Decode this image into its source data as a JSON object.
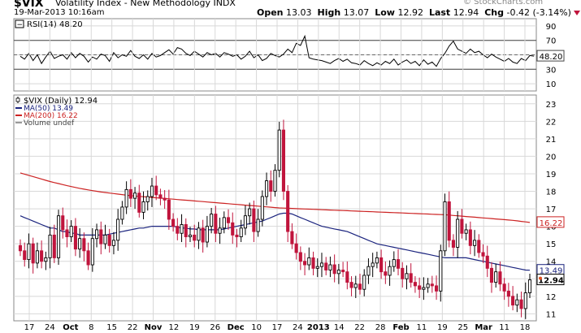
{
  "header": {
    "symbol": "$VIX",
    "name": "Volatility Index - New Methodology INDX",
    "date": "19-Mar-2013 10:16am",
    "credit": "© StockCharts.com",
    "quote": {
      "open_label": "Open",
      "open": "13.03",
      "high_label": "High",
      "high": "13.07",
      "low_label": "Low",
      "low": "12.92",
      "last_label": "Last",
      "last": "12.94",
      "chg_label": "Chg",
      "chg": "-0.42 (-3.14%)"
    }
  },
  "colors": {
    "up": "#000000",
    "down": "#c0143c",
    "ma50": "#1a237e",
    "ma200": "#cc2222",
    "rsi": "#000000",
    "grid": "#d8d8d8"
  },
  "chart_data": [
    {
      "type": "line",
      "title": "RSI(14) 48.20",
      "yticks": [
        10,
        30,
        50,
        70,
        90
      ],
      "ylim": [
        0,
        100
      ],
      "reference_lines": [
        30,
        70
      ],
      "current_label": "48.20",
      "series": [
        {
          "name": "RSI(14)",
          "values": [
            48,
            44,
            52,
            42,
            50,
            38,
            47,
            55,
            45,
            48,
            50,
            44,
            53,
            46,
            52,
            48,
            40,
            47,
            44,
            51,
            49,
            41,
            53,
            46,
            50,
            48,
            56,
            48,
            45,
            50,
            44,
            52,
            47,
            49,
            53,
            57,
            51,
            60,
            58,
            52,
            49,
            55,
            51,
            47,
            53,
            50,
            52,
            47,
            53,
            51,
            48,
            50,
            44,
            48,
            55,
            46,
            50,
            42,
            45,
            52,
            49,
            47,
            51,
            58,
            53,
            66,
            63,
            76,
            46,
            44,
            43,
            42,
            40,
            38,
            42,
            45,
            41,
            44,
            39,
            38,
            36,
            42,
            38,
            35,
            39,
            36,
            41,
            38,
            44,
            36,
            40,
            43,
            38,
            41,
            35,
            43,
            37,
            40,
            34,
            45,
            52,
            62,
            69,
            58,
            55,
            52,
            58,
            53,
            55,
            50,
            46,
            51,
            47,
            44,
            41,
            45,
            40,
            38,
            45,
            42,
            49,
            48.2
          ]
        }
      ]
    },
    {
      "type": "candlestick",
      "title": "$VIX (Daily) 12.94",
      "ylim": [
        10.6,
        23.5
      ],
      "yticks": [
        11,
        12,
        13,
        14,
        15,
        16,
        17,
        18,
        19,
        20,
        21,
        22,
        23
      ],
      "xticks": [
        "17",
        "24",
        "Oct",
        "8",
        "15",
        "22",
        "Nov",
        "12",
        "19",
        "26",
        "Dec",
        "10",
        "17",
        "24",
        "2013",
        "14",
        "22",
        "28",
        "Feb",
        "11",
        "19",
        "25",
        "Mar",
        "11",
        "18"
      ],
      "legend": [
        {
          "name": "$VIX (Daily) 12.94",
          "marker": "candle"
        },
        {
          "name": "MA(50) 13.49",
          "color": "#1a237e"
        },
        {
          "name": "MA(200) 16.22",
          "color": "#cc2222"
        },
        {
          "name": "Volume undef",
          "color": "#999999"
        }
      ],
      "price_labels": [
        {
          "name": "MA(200)",
          "value": "16.22"
        },
        {
          "name": "MA(50)",
          "value": "13.49"
        },
        {
          "name": "Last",
          "value": "12.94"
        }
      ],
      "closes": [
        14.6,
        14.1,
        15.0,
        13.9,
        14.6,
        14.0,
        14.2,
        15.5,
        14.2,
        16.6,
        15.8,
        15.4,
        16.0,
        14.7,
        15.3,
        14.6,
        13.8,
        15.3,
        15.8,
        15.0,
        15.5,
        14.9,
        15.2,
        16.4,
        17.1,
        18.1,
        17.6,
        17.9,
        16.8,
        17.4,
        17.7,
        18.3,
        17.8,
        17.6,
        17.5,
        16.4,
        16.0,
        15.6,
        16.1,
        15.4,
        15.5,
        15.2,
        15.9,
        15.1,
        16.0,
        16.7,
        15.6,
        15.9,
        16.5,
        16.2,
        15.5,
        15.4,
        15.9,
        16.6,
        17.0,
        15.7,
        16.4,
        17.7,
        18.6,
        18.0,
        19.2,
        21.5,
        18.0,
        15.7,
        15.0,
        14.5,
        14.0,
        13.8,
        14.2,
        13.6,
        13.7,
        13.9,
        13.5,
        13.8,
        13.3,
        13.5,
        13.4,
        12.8,
        12.5,
        12.7,
        12.4,
        13.2,
        13.7,
        13.9,
        14.2,
        13.4,
        13.2,
        13.7,
        14.1,
        13.6,
        13.0,
        13.3,
        12.8,
        12.6,
        12.4,
        12.5,
        12.7,
        12.6,
        12.3,
        14.6,
        17.4,
        15.2,
        14.8,
        16.4,
        15.6,
        15.8,
        14.9,
        15.2,
        14.5,
        14.3,
        13.6,
        12.8,
        13.4,
        12.7,
        12.3,
        12.0,
        11.5,
        11.8,
        11.3,
        12.2,
        12.94
      ],
      "ma50": [
        16.6,
        16.5,
        16.4,
        16.3,
        16.2,
        16.1,
        16.0,
        15.9,
        15.9,
        15.8,
        15.7,
        15.7,
        15.6,
        15.6,
        15.5,
        15.5,
        15.5,
        15.5,
        15.5,
        15.5,
        15.5,
        15.55,
        15.6,
        15.65,
        15.7,
        15.75,
        15.8,
        15.85,
        15.9,
        15.9,
        15.95,
        16.0,
        16.0,
        16.0,
        16.0,
        16.0,
        16.0,
        15.95,
        15.9,
        15.9,
        15.85,
        15.85,
        15.8,
        15.8,
        15.8,
        15.8,
        15.8,
        15.8,
        15.85,
        15.9,
        15.95,
        16.0,
        16.05,
        16.1,
        16.15,
        16.2,
        16.25,
        16.3,
        16.4,
        16.5,
        16.6,
        16.7,
        16.75,
        16.75,
        16.7,
        16.6,
        16.5,
        16.4,
        16.3,
        16.2,
        16.1,
        16.0,
        15.95,
        15.9,
        15.85,
        15.8,
        15.75,
        15.7,
        15.6,
        15.5,
        15.4,
        15.3,
        15.2,
        15.1,
        15.0,
        14.95,
        14.9,
        14.85,
        14.8,
        14.75,
        14.7,
        14.65,
        14.6,
        14.55,
        14.5,
        14.45,
        14.4,
        14.35,
        14.3,
        14.25,
        14.2,
        14.2,
        14.2,
        14.2,
        14.2,
        14.2,
        14.15,
        14.1,
        14.05,
        14.0,
        13.95,
        13.9,
        13.85,
        13.8,
        13.75,
        13.7,
        13.65,
        13.6,
        13.55,
        13.5,
        13.49
      ],
      "ma200": [
        19.05,
        18.98,
        18.91,
        18.84,
        18.77,
        18.7,
        18.63,
        18.56,
        18.5,
        18.44,
        18.38,
        18.32,
        18.27,
        18.22,
        18.17,
        18.12,
        18.08,
        18.04,
        18.0,
        17.96,
        17.93,
        17.9,
        17.87,
        17.84,
        17.81,
        17.78,
        17.75,
        17.73,
        17.71,
        17.69,
        17.67,
        17.65,
        17.63,
        17.61,
        17.59,
        17.57,
        17.55,
        17.53,
        17.51,
        17.49,
        17.47,
        17.45,
        17.43,
        17.41,
        17.39,
        17.37,
        17.35,
        17.33,
        17.31,
        17.29,
        17.27,
        17.25,
        17.23,
        17.21,
        17.19,
        17.17,
        17.15,
        17.13,
        17.11,
        17.09,
        17.07,
        17.05,
        17.04,
        17.03,
        17.02,
        17.01,
        17.0,
        16.99,
        16.98,
        16.97,
        16.96,
        16.95,
        16.94,
        16.93,
        16.92,
        16.91,
        16.9,
        16.89,
        16.88,
        16.87,
        16.86,
        16.85,
        16.84,
        16.83,
        16.82,
        16.81,
        16.8,
        16.79,
        16.78,
        16.77,
        16.76,
        16.75,
        16.74,
        16.73,
        16.72,
        16.71,
        16.7,
        16.69,
        16.68,
        16.67,
        16.66,
        16.64,
        16.62,
        16.6,
        16.58,
        16.56,
        16.54,
        16.52,
        16.5,
        16.48,
        16.46,
        16.44,
        16.42,
        16.4,
        16.38,
        16.36,
        16.34,
        16.31,
        16.28,
        16.25,
        16.22
      ]
    }
  ]
}
